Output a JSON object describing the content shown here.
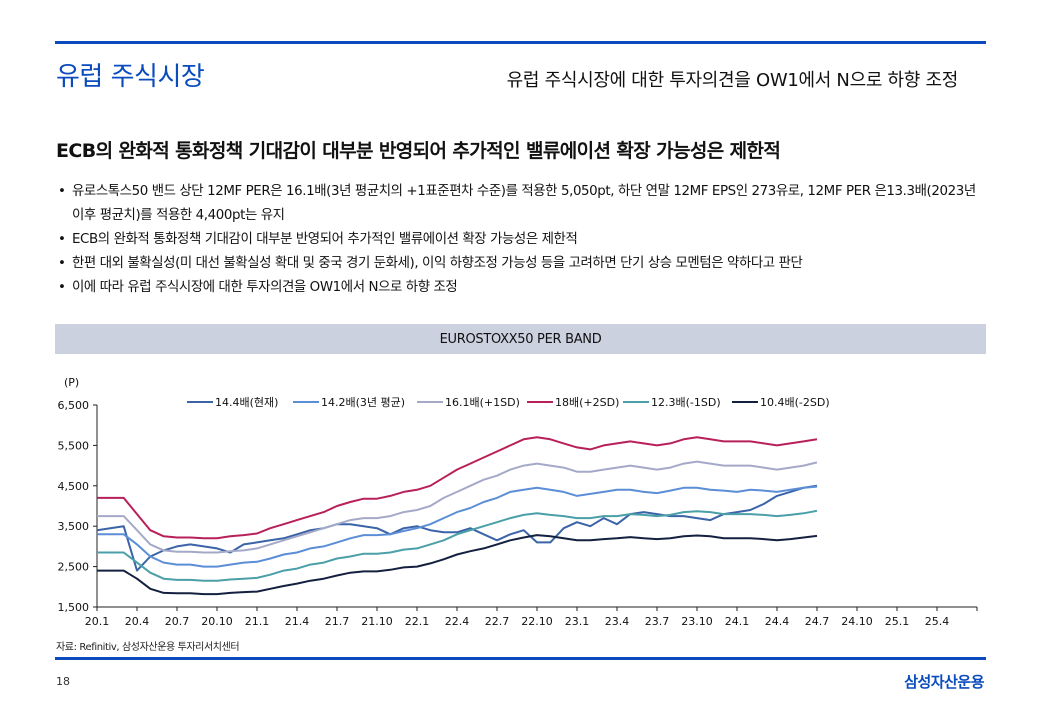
{
  "header": {
    "title": "유럽 주식시장",
    "subtitle": "유럽 주식시장에 대한 투자의견을 OW1에서 N으로 하향 조정"
  },
  "headline": "ECB의 완화적 통화정책 기대감이 대부분 반영되어 추가적인 밸류에이션 확장 가능성은 제한적",
  "bullets": [
    "유로스톡스50 밴드 상단 12MF PER은 16.1배(3년 평균치의 +1표준편차 수준)를 적용한 5,050pt, 하단 연말 12MF EPS인 273유로, 12MF PER 은13.3배(2023년 이후 평균치)를 적용한 4,400pt는 유지",
    "ECB의 완화적 통화정책 기대감이 대부분 반영되어 추가적인 밸류에이션 확장 가능성은 제한적",
    "한편 대외 불확실성(미 대선 불확실성 확대 및 중국 경기 둔화세), 이익 하향조정 가능성 등을 고려하면 단기 상승 모멘텀은 약하다고 판단",
    "이에 따라 유럽 주식시장에 대한 투자의견을 OW1에서 N으로 하향 조정"
  ],
  "bullet_marker": "•",
  "chart_data": {
    "type": "line",
    "title": "EUROSTOXX50 PER BAND",
    "ylabel": "(P)",
    "xlabel": "",
    "ylim": [
      1500,
      6500
    ],
    "yticks": [
      1500,
      2500,
      3500,
      4500,
      5500,
      6500
    ],
    "ytick_labels": [
      "1,500",
      "2,500",
      "3,500",
      "4,500",
      "5,500",
      "6,500"
    ],
    "categories": [
      "20.1",
      "20.4",
      "20.7",
      "20.10",
      "21.1",
      "21.4",
      "21.7",
      "21.10",
      "22.1",
      "22.4",
      "22.7",
      "22.10",
      "23.1",
      "23.4",
      "23.7",
      "23.10",
      "24.1",
      "24.4",
      "24.7",
      "24.10",
      "25.1",
      "25.4"
    ],
    "x": [
      "20.1",
      "20.2",
      "20.3",
      "20.4",
      "20.5",
      "20.6",
      "20.7",
      "20.8",
      "20.9",
      "20.10",
      "20.11",
      "20.12",
      "21.1",
      "21.2",
      "21.3",
      "21.4",
      "21.5",
      "21.6",
      "21.7",
      "21.8",
      "21.9",
      "21.10",
      "21.11",
      "21.12",
      "22.1",
      "22.2",
      "22.3",
      "22.4",
      "22.5",
      "22.6",
      "22.7",
      "22.8",
      "22.9",
      "22.10",
      "22.11",
      "22.12",
      "23.1",
      "23.2",
      "23.3",
      "23.4",
      "23.5",
      "23.6",
      "23.7",
      "23.8",
      "23.9",
      "23.10",
      "23.11",
      "23.12",
      "24.1",
      "24.2",
      "24.3",
      "24.4",
      "24.5",
      "24.6",
      "24.7"
    ],
    "grid": false,
    "legend_position": "top",
    "series": [
      {
        "name": "14.4배(현재)",
        "color": "#3b63a8",
        "values": [
          3400,
          3450,
          3500,
          2400,
          2750,
          2900,
          3000,
          3050,
          3000,
          2950,
          2850,
          3050,
          3100,
          3150,
          3200,
          3300,
          3400,
          3450,
          3550,
          3550,
          3500,
          3450,
          3300,
          3450,
          3500,
          3400,
          3350,
          3350,
          3450,
          3300,
          3150,
          3300,
          3400,
          3100,
          3100,
          3450,
          3600,
          3500,
          3700,
          3550,
          3800,
          3850,
          3800,
          3750,
          3750,
          3700,
          3650,
          3800,
          3850,
          3900,
          4050,
          4250,
          4350,
          4450,
          4500
        ]
      },
      {
        "name": "14.2배(3년 평균)",
        "color": "#5b8ed6",
        "values": [
          3300,
          3300,
          3300,
          3050,
          2750,
          2600,
          2550,
          2550,
          2500,
          2500,
          2550,
          2600,
          2620,
          2700,
          2800,
          2850,
          2950,
          3000,
          3100,
          3200,
          3280,
          3280,
          3300,
          3380,
          3450,
          3550,
          3700,
          3850,
          3950,
          4100,
          4200,
          4350,
          4400,
          4450,
          4400,
          4350,
          4250,
          4300,
          4350,
          4400,
          4400,
          4350,
          4320,
          4380,
          4450,
          4450,
          4400,
          4380,
          4350,
          4400,
          4380,
          4350,
          4400,
          4450,
          4480
        ]
      },
      {
        "name": "16.1배(+1SD)",
        "color": "#a5a9c8",
        "values": [
          3750,
          3750,
          3750,
          3400,
          3050,
          2900,
          2870,
          2870,
          2850,
          2850,
          2880,
          2900,
          2950,
          3050,
          3150,
          3250,
          3350,
          3450,
          3550,
          3650,
          3700,
          3700,
          3750,
          3850,
          3900,
          4000,
          4200,
          4350,
          4500,
          4650,
          4750,
          4900,
          5000,
          5050,
          5000,
          4950,
          4850,
          4850,
          4900,
          4950,
          5000,
          4950,
          4900,
          4950,
          5050,
          5100,
          5050,
          5000,
          5000,
          5000,
          4950,
          4900,
          4950,
          5000,
          5080
        ]
      },
      {
        "name": "18배(+2SD)",
        "color": "#b8205a",
        "values": [
          4200,
          4200,
          4200,
          3800,
          3400,
          3250,
          3220,
          3220,
          3200,
          3200,
          3250,
          3280,
          3320,
          3450,
          3550,
          3650,
          3750,
          3850,
          4000,
          4100,
          4180,
          4180,
          4250,
          4350,
          4400,
          4500,
          4700,
          4900,
          5050,
          5200,
          5350,
          5500,
          5650,
          5700,
          5650,
          5550,
          5450,
          5400,
          5500,
          5550,
          5600,
          5550,
          5500,
          5550,
          5650,
          5700,
          5650,
          5600,
          5600,
          5600,
          5550,
          5500,
          5550,
          5600,
          5650
        ]
      },
      {
        "name": "12.3배(-1SD)",
        "color": "#4a9fa8",
        "values": [
          2850,
          2850,
          2850,
          2600,
          2350,
          2200,
          2170,
          2170,
          2150,
          2150,
          2180,
          2200,
          2220,
          2300,
          2400,
          2450,
          2550,
          2600,
          2700,
          2750,
          2820,
          2820,
          2850,
          2920,
          2950,
          3050,
          3150,
          3300,
          3400,
          3500,
          3600,
          3700,
          3780,
          3820,
          3780,
          3750,
          3700,
          3700,
          3750,
          3750,
          3800,
          3780,
          3750,
          3780,
          3850,
          3870,
          3850,
          3800,
          3800,
          3800,
          3780,
          3750,
          3780,
          3820,
          3880
        ]
      },
      {
        "name": "10.4배(-2SD)",
        "color": "#14203f",
        "values": [
          2400,
          2400,
          2400,
          2200,
          1950,
          1850,
          1840,
          1840,
          1820,
          1820,
          1850,
          1870,
          1880,
          1950,
          2020,
          2080,
          2150,
          2200,
          2280,
          2350,
          2380,
          2380,
          2420,
          2480,
          2500,
          2580,
          2680,
          2800,
          2880,
          2950,
          3050,
          3150,
          3220,
          3280,
          3250,
          3200,
          3150,
          3150,
          3180,
          3200,
          3230,
          3200,
          3180,
          3200,
          3250,
          3270,
          3250,
          3200,
          3200,
          3200,
          3180,
          3150,
          3180,
          3220,
          3260
        ]
      }
    ]
  },
  "source": "자료: Refinitiv, 삼성자산운용 투자리서치센터",
  "footer": {
    "page_number": "18",
    "company_logo": "삼성자산운용"
  }
}
